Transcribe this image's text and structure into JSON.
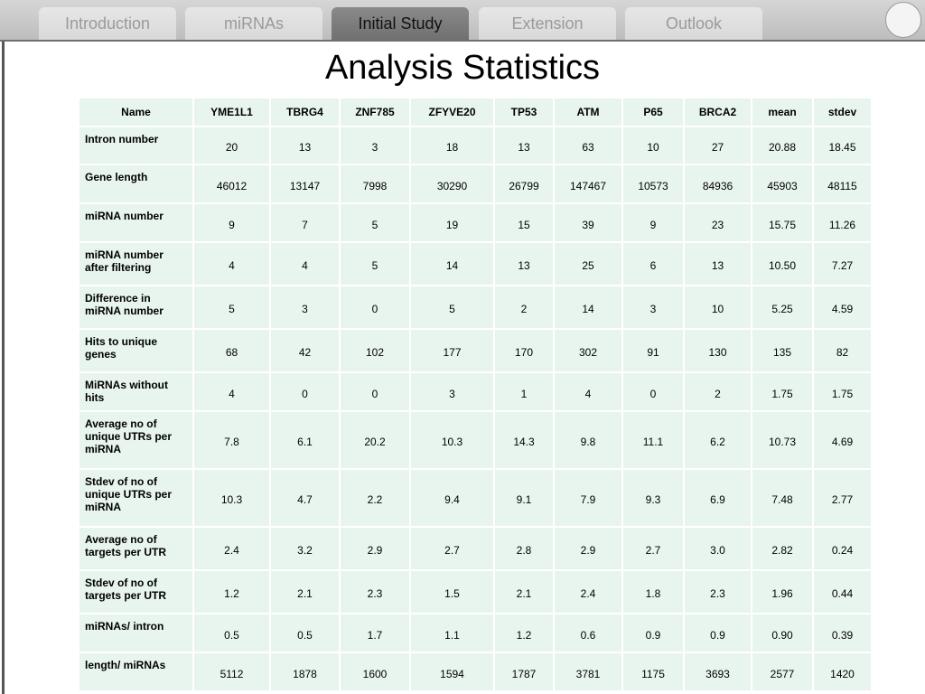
{
  "nav": {
    "tabs": [
      "Introduction",
      "miRNAs",
      "Initial Study",
      "Extension",
      "Outlook"
    ],
    "active": 2
  },
  "title": "Analysis Statistics",
  "table": {
    "header": [
      "Name",
      "YME1L1",
      "TBRG4",
      "ZNF785",
      "ZFYVE20",
      "TP53",
      "ATM",
      "P65",
      "BRCA2",
      "mean",
      "stdev"
    ],
    "rows": [
      [
        "Intron number",
        "20",
        "13",
        "3",
        "18",
        "13",
        "63",
        "10",
        "27",
        "20.88",
        "18.45"
      ],
      [
        "Gene length",
        "46012",
        "13147",
        "7998",
        "30290",
        "26799",
        "147467",
        "10573",
        "84936",
        "45903",
        "48115"
      ],
      [
        "miRNA number",
        "9",
        "7",
        "5",
        "19",
        "15",
        "39",
        "9",
        "23",
        "15.75",
        "11.26"
      ],
      [
        "miRNA number after filtering",
        "4",
        "4",
        "5",
        "14",
        "13",
        "25",
        "6",
        "13",
        "10.50",
        "7.27"
      ],
      [
        "Difference in miRNA number",
        "5",
        "3",
        "0",
        "5",
        "2",
        "14",
        "3",
        "10",
        "5.25",
        "4.59"
      ],
      [
        "Hits to unique genes",
        "68",
        "42",
        "102",
        "177",
        "170",
        "302",
        "91",
        "130",
        "135",
        "82"
      ],
      [
        "MiRNAs without hits",
        "4",
        "0",
        "0",
        "3",
        "1",
        "4",
        "0",
        "2",
        "1.75",
        "1.75"
      ],
      [
        "Average no of unique UTRs per miRNA",
        "7.8",
        "6.1",
        "20.2",
        "10.3",
        "14.3",
        "9.8",
        "11.1",
        "6.2",
        "10.73",
        "4.69"
      ],
      [
        "Stdev of no of unique UTRs per miRNA",
        "10.3",
        "4.7",
        "2.2",
        "9.4",
        "9.1",
        "7.9",
        "9.3",
        "6.9",
        "7.48",
        "2.77"
      ],
      [
        "Average no of targets per UTR",
        "2.4",
        "3.2",
        "2.9",
        "2.7",
        "2.8",
        "2.9",
        "2.7",
        "3.0",
        "2.82",
        "0.24"
      ],
      [
        "Stdev of no of targets per UTR",
        "1.2",
        "2.1",
        "2.3",
        "1.5",
        "2.1",
        "2.4",
        "1.8",
        "2.3",
        "1.96",
        "0.44"
      ],
      [
        "miRNAs/ intron",
        "0.5",
        "0.5",
        "1.7",
        "1.1",
        "1.2",
        "0.6",
        "0.9",
        "0.9",
        "0.90",
        "0.39"
      ],
      [
        "length/ miRNAs",
        "5112",
        "1878",
        "1600",
        "1594",
        "1787",
        "3781",
        "1175",
        "3693",
        "2577",
        "1420"
      ]
    ]
  }
}
